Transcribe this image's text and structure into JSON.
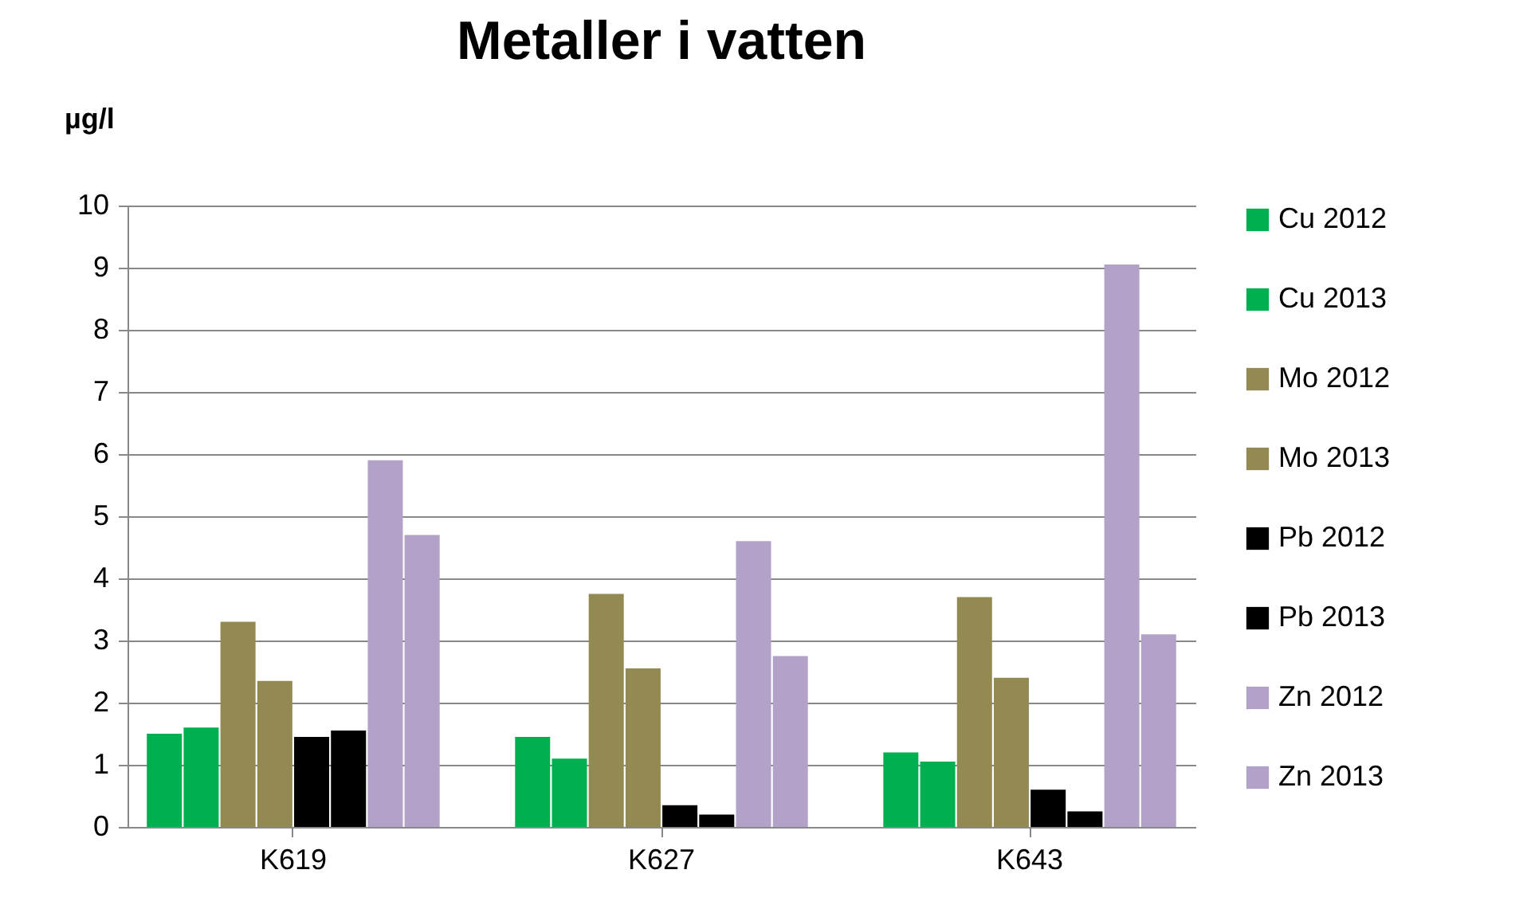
{
  "chart_data": {
    "type": "bar",
    "title": "Metaller i vatten",
    "ylabel": "µg/l",
    "categories": [
      "K619",
      "K627",
      "K643"
    ],
    "series": [
      {
        "name": "Cu 2012",
        "color": "#00b050",
        "values": [
          1.5,
          1.45,
          1.2
        ]
      },
      {
        "name": "Cu 2013",
        "color": "#00b050",
        "values": [
          1.6,
          1.1,
          1.05
        ]
      },
      {
        "name": "Mo 2012",
        "color": "#938953",
        "values": [
          3.3,
          3.75,
          3.7
        ]
      },
      {
        "name": "Mo 2013",
        "color": "#938953",
        "values": [
          2.35,
          2.55,
          2.4
        ]
      },
      {
        "name": "Pb 2012",
        "color": "#000000",
        "values": [
          1.45,
          0.35,
          0.6
        ]
      },
      {
        "name": "Pb 2013",
        "color": "#000000",
        "values": [
          1.55,
          0.2,
          0.25
        ]
      },
      {
        "name": "Zn 2012",
        "color": "#b3a2c7",
        "values": [
          5.9,
          4.6,
          9.05
        ]
      },
      {
        "name": "Zn 2013",
        "color": "#b3a2c7",
        "values": [
          4.7,
          2.75,
          3.1
        ]
      }
    ],
    "ylim": [
      0,
      10
    ],
    "yticks": [
      0,
      1,
      2,
      3,
      4,
      5,
      6,
      7,
      8,
      9,
      10
    ],
    "grid": "y",
    "legend": "right"
  }
}
